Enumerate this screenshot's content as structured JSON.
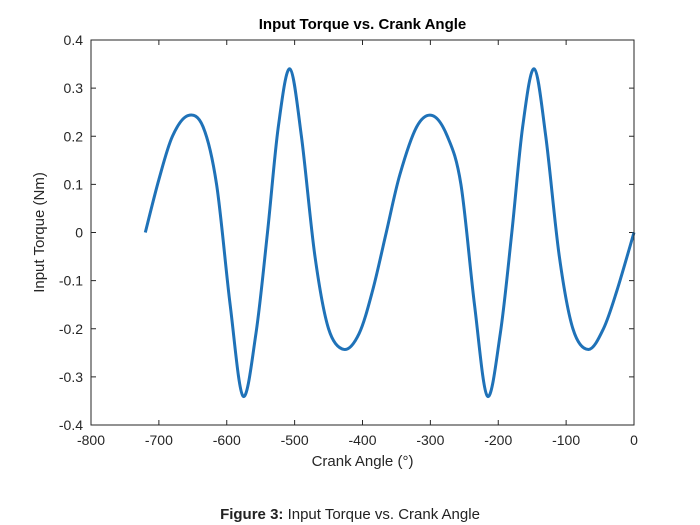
{
  "chart_data": {
    "type": "line",
    "title": "Input Torque vs. Crank Angle",
    "xlabel": "Crank Angle (°)",
    "ylabel": "Input Torque (Nm)",
    "xlim": [
      -800,
      0
    ],
    "ylim": [
      -0.4,
      0.4
    ],
    "xticks": [
      -800,
      -700,
      -600,
      -500,
      -400,
      -300,
      -200,
      -100,
      0
    ],
    "yticks": [
      -0.4,
      -0.3,
      -0.2,
      -0.1,
      0,
      0.1,
      0.2,
      0.3,
      0.4
    ],
    "xtick_labels": [
      "-800",
      "-700",
      "-600",
      "-500",
      "-400",
      "-300",
      "-200",
      "-100",
      "0"
    ],
    "ytick_labels": [
      "-0.4",
      "-0.3",
      "-0.2",
      "-0.1",
      "0",
      "0.1",
      "0.2",
      "0.3",
      "0.4"
    ],
    "grid": false,
    "series": [
      {
        "color": "#1f72b8",
        "x": [
          -720,
          -700,
          -680,
          -657,
          -635,
          -615,
          -595,
          -576,
          -557,
          -540,
          -524,
          -507,
          -490,
          -470,
          -450,
          -427,
          -405,
          -385,
          -365,
          -345,
          -320,
          -297,
          -275,
          -255,
          -235,
          -216,
          -197,
          -180,
          -164,
          -147,
          -130,
          -110,
          -90,
          -67,
          -45,
          -25,
          0
        ],
        "y": [
          0.0,
          0.11,
          0.2,
          0.243,
          0.22,
          0.1,
          -0.15,
          -0.34,
          -0.21,
          0.0,
          0.22,
          0.34,
          0.2,
          -0.05,
          -0.2,
          -0.243,
          -0.21,
          -0.12,
          0.0,
          0.12,
          0.22,
          0.243,
          0.2,
          0.1,
          -0.15,
          -0.34,
          -0.21,
          0.0,
          0.22,
          0.34,
          0.2,
          -0.05,
          -0.2,
          -0.243,
          -0.2,
          -0.12,
          0.0
        ]
      }
    ]
  },
  "caption": {
    "label": "Figure 3:",
    "text": "Input Torque vs. Crank Angle"
  }
}
